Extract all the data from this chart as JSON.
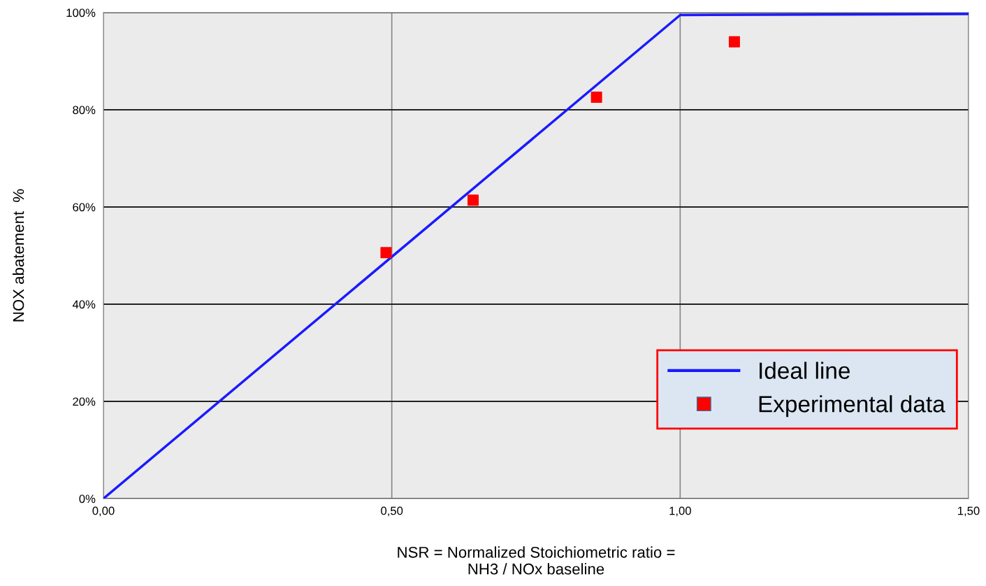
{
  "chart_data": {
    "type": "line",
    "xlabel": "NSR = Normalized Stoichiometric ratio =\nNH3 / NOx baseline",
    "ylabel": "NOX abatement  %",
    "series": [
      {
        "name": "Ideal line",
        "color": "#1a1aff",
        "x": [
          0,
          1.0,
          1.5
        ],
        "values": [
          0,
          99.5,
          99.7
        ],
        "marker": "none"
      },
      {
        "name": "Experimental data",
        "type": "scatter",
        "color": "#ff0000",
        "x": [
          0.49,
          0.641,
          0.855,
          1.094
        ],
        "values": [
          50.6,
          61.4,
          82.6,
          94.0
        ],
        "marker": "square"
      }
    ],
    "xlim": [
      0,
      1.5
    ],
    "ylim": [
      0,
      100
    ],
    "xticks": [
      {
        "value": 0,
        "label": "0,00"
      },
      {
        "value": 0.5,
        "label": "0,50"
      },
      {
        "value": 1.0,
        "label": "1,00"
      },
      {
        "value": 1.5,
        "label": "1,50"
      }
    ],
    "yticks": [
      {
        "value": 0,
        "label": "0%"
      },
      {
        "value": 20,
        "label": "20%"
      },
      {
        "value": 40,
        "label": "40%"
      },
      {
        "value": 60,
        "label": "60%"
      },
      {
        "value": 80,
        "label": "80%"
      },
      {
        "value": 100,
        "label": "100%"
      }
    ],
    "grid": true,
    "legend": "bottom right"
  }
}
